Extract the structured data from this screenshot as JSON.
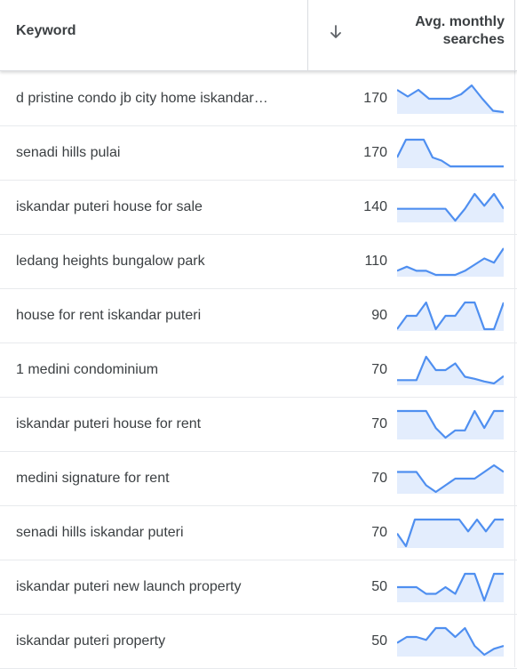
{
  "header": {
    "keyword_label": "Keyword",
    "sort_icon": "arrow-down-icon",
    "avg_line1": "Avg. monthly",
    "avg_line2": "searches"
  },
  "colors": {
    "spark_line": "#4f8ff0",
    "spark_fill": "#e3edfd"
  },
  "rows": [
    {
      "keyword": "d pristine condo jb city home iskandar…",
      "searches": "170",
      "trend": [
        5,
        3.5,
        5,
        3,
        3,
        3,
        4,
        6,
        3,
        0.3,
        0
      ]
    },
    {
      "keyword": "senadi hills pulai",
      "searches": "170",
      "trend": [
        3,
        7,
        7,
        7,
        3,
        2.3,
        1,
        1,
        1,
        1,
        1,
        1,
        1
      ]
    },
    {
      "keyword": "iskandar puteri house for sale",
      "searches": "140",
      "trend": [
        5,
        5,
        5,
        5,
        5,
        5,
        3,
        5,
        7.5,
        5.5,
        7.5,
        5
      ]
    },
    {
      "keyword": "ledang heights bungalow park",
      "searches": "110",
      "trend": [
        2.5,
        3.5,
        2.5,
        2.5,
        1.5,
        1.5,
        1.5,
        2.5,
        4,
        5.5,
        4.5,
        8
      ]
    },
    {
      "keyword": "house for rent iskandar puteri",
      "searches": "90",
      "trend": [
        1,
        3.5,
        3.5,
        6,
        1,
        3.5,
        3.5,
        6,
        6,
        1,
        1,
        6
      ]
    },
    {
      "keyword": "1 medini condominium",
      "searches": "70",
      "trend": [
        2,
        2,
        2,
        5.5,
        3.5,
        3.5,
        4.5,
        2.5,
        2.2,
        1.8,
        1.5,
        2.6
      ]
    },
    {
      "keyword": "iskandar puteri house for rent",
      "searches": "70",
      "trend": [
        6,
        6,
        6,
        6,
        2.5,
        0.5,
        2,
        2,
        6,
        2.5,
        6,
        6
      ]
    },
    {
      "keyword": "medini signature for rent",
      "searches": "70",
      "trend": [
        4,
        4,
        4,
        2,
        1,
        2,
        3,
        3,
        3,
        4,
        5,
        4
      ]
    },
    {
      "keyword": "senadi hills iskandar puteri",
      "searches": "70",
      "trend": [
        1.8,
        0.5,
        3.2,
        3.2,
        3.2,
        3.2,
        3.2,
        3.2,
        2.0,
        3.2,
        2.0,
        3.2,
        3.2
      ]
    },
    {
      "keyword": "iskandar puteri new launch property",
      "searches": "50",
      "trend": [
        3,
        3,
        3,
        2,
        2,
        3,
        2,
        5,
        5,
        1,
        5,
        5
      ]
    },
    {
      "keyword": "iskandar puteri property",
      "searches": "50",
      "trend": [
        4,
        5,
        5,
        4.5,
        6.5,
        6.5,
        5,
        6.5,
        3.5,
        2,
        3,
        3.5
      ]
    }
  ]
}
